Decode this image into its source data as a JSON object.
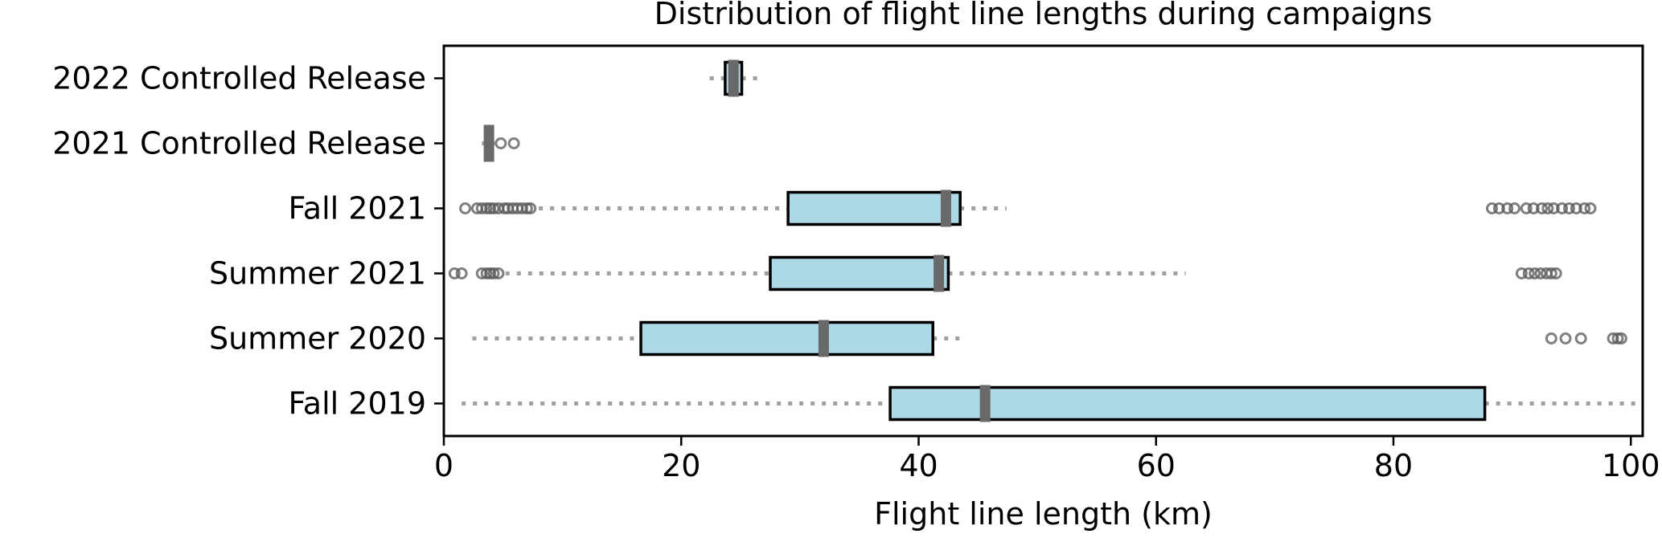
{
  "chart_data": {
    "type": "boxplot",
    "orientation": "horizontal",
    "title": "Distribution of flight line lengths during campaigns",
    "xlabel": "Flight line length (km)",
    "ylabel": "",
    "xlim": [
      0,
      101
    ],
    "xticks": [
      0,
      20,
      40,
      60,
      80,
      100
    ],
    "xtick_labels": [
      "0",
      "20",
      "40",
      "60",
      "80",
      "100"
    ],
    "grid": false,
    "categories": [
      "2022 Controlled Release",
      "2021 Controlled Release",
      "Fall 2021",
      "Summer 2021",
      "Summer 2020",
      "Fall 2019"
    ],
    "boxes": [
      {
        "label": "2022 Controlled Release",
        "whisker_low": 22.4,
        "q1": 23.7,
        "median": 24.4,
        "q3": 25.1,
        "whisker_high": 26.5,
        "outliers": []
      },
      {
        "label": "2021 Controlled Release",
        "whisker_low": 3.2,
        "q1": 3.6,
        "median": 3.8,
        "q3": 4.1,
        "whisker_high": 4.3,
        "outliers": [
          4.8,
          5.9
        ]
      },
      {
        "label": "Fall 2021",
        "whisker_low": 8.0,
        "q1": 29.0,
        "median": 42.3,
        "q3": 43.5,
        "whisker_high": 47.4,
        "outliers": [
          1.8,
          2.8,
          3.2,
          3.6,
          3.9,
          4.2,
          4.6,
          5.1,
          5.4,
          5.8,
          6.2,
          6.6,
          7.0,
          7.3,
          88.3,
          88.9,
          89.6,
          90.2,
          91.2,
          91.8,
          92.5,
          93.0,
          93.5,
          94.2,
          94.8,
          95.4,
          96.1,
          96.6
        ]
      },
      {
        "label": "Summer 2021",
        "whisker_low": 5.2,
        "q1": 27.5,
        "median": 41.7,
        "q3": 42.5,
        "whisker_high": 62.5,
        "outliers": [
          0.9,
          1.5,
          3.2,
          3.6,
          3.9,
          4.2,
          4.6,
          90.8,
          91.4,
          91.9,
          92.4,
          92.9,
          93.3,
          93.7
        ]
      },
      {
        "label": "Summer 2020",
        "whisker_low": 2.4,
        "q1": 16.6,
        "median": 32.0,
        "q3": 41.2,
        "whisker_high": 44.0,
        "outliers": [
          93.3,
          94.5,
          95.8,
          98.5,
          98.9,
          99.2
        ]
      },
      {
        "label": "Fall 2019",
        "whisker_low": 1.5,
        "q1": 37.6,
        "median": 45.6,
        "q3": 87.7,
        "whisker_high": 101,
        "outliers": []
      }
    ],
    "colors": {
      "box_fill": "#add8e6",
      "box_edge": "#000000",
      "median": "#696969",
      "whisker": "#a0a0a0",
      "outlier_edge": "#555555"
    }
  }
}
